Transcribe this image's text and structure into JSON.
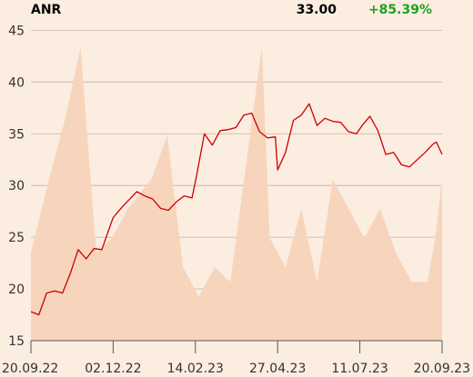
{
  "header": {
    "ticker": "ANR",
    "price": "33.00",
    "change": "+85.39%"
  },
  "colors": {
    "background": "#fcede1",
    "line": "#cc0000",
    "volume": "#f6d5bc",
    "grid": "#c2b3a5",
    "change_positive": "#1aa31a"
  },
  "chart_data": {
    "type": "line",
    "title": "",
    "xlabel": "",
    "ylabel": "",
    "ylim": [
      15,
      46
    ],
    "yticks": [
      15,
      20,
      25,
      30,
      35,
      40,
      45
    ],
    "xtick_labels": [
      "20.09.22",
      "02.12.22",
      "14.02.23",
      "27.04.23",
      "11.07.23",
      "20.09.23"
    ],
    "grid": "horizontal",
    "series": [
      {
        "kind": "price",
        "x": [
          "2022-09-20",
          "2022-09-27",
          "2022-10-04",
          "2022-10-11",
          "2022-10-18",
          "2022-10-25",
          "2022-11-01",
          "2022-11-08",
          "2022-11-15",
          "2022-11-22",
          "2022-11-29",
          "2022-12-02",
          "2022-12-09",
          "2022-12-16",
          "2022-12-23",
          "2022-12-30",
          "2023-01-06",
          "2023-01-13",
          "2023-01-20",
          "2023-01-27",
          "2023-02-03",
          "2023-02-10",
          "2023-02-14",
          "2023-02-21",
          "2023-02-28",
          "2023-03-07",
          "2023-03-14",
          "2023-03-21",
          "2023-03-28",
          "2023-04-04",
          "2023-04-11",
          "2023-04-18",
          "2023-04-25",
          "2023-04-27",
          "2023-05-04",
          "2023-05-11",
          "2023-05-18",
          "2023-05-25",
          "2023-06-01",
          "2023-06-08",
          "2023-06-15",
          "2023-06-22",
          "2023-06-29",
          "2023-07-06",
          "2023-07-11",
          "2023-07-18",
          "2023-07-25",
          "2023-08-01",
          "2023-08-08",
          "2023-08-15",
          "2023-08-22",
          "2023-08-29",
          "2023-09-05",
          "2023-09-12",
          "2023-09-15",
          "2023-09-20"
        ],
        "y": [
          17.8,
          17.5,
          19.6,
          19.8,
          19.6,
          21.5,
          23.8,
          22.9,
          23.9,
          23.8,
          26.0,
          26.9,
          27.8,
          28.6,
          29.4,
          29.0,
          28.7,
          27.8,
          27.6,
          28.4,
          29.0,
          28.8,
          30.9,
          35.0,
          33.9,
          35.3,
          35.4,
          35.6,
          36.8,
          37.0,
          35.2,
          34.6,
          34.7,
          31.5,
          33.2,
          36.3,
          36.8,
          37.9,
          35.8,
          36.5,
          36.2,
          36.1,
          35.2,
          35.0,
          35.8,
          36.7,
          35.3,
          33.0,
          33.2,
          32.0,
          31.8,
          32.5,
          33.2,
          34.0,
          34.2,
          33.0
        ]
      },
      {
        "kind": "volume",
        "x": [
          "2022-09-20",
          "2022-10-06",
          "2022-10-20",
          "2022-11-03",
          "2022-11-17",
          "2022-12-01",
          "2022-12-15",
          "2023-01-05",
          "2023-01-19",
          "2023-02-02",
          "2023-02-16",
          "2023-03-02",
          "2023-03-16",
          "2023-04-13",
          "2023-04-20",
          "2023-05-04",
          "2023-05-18",
          "2023-06-01",
          "2023-06-15",
          "2023-07-13",
          "2023-07-27",
          "2023-08-10",
          "2023-08-24",
          "2023-09-07",
          "2023-09-14",
          "2023-09-20"
        ],
        "values": [
          0.3,
          0.55,
          0.75,
          1.0,
          0.3,
          0.35,
          0.45,
          0.55,
          0.7,
          0.25,
          0.15,
          0.25,
          0.2,
          1.0,
          0.35,
          0.25,
          0.45,
          0.2,
          0.55,
          0.35,
          0.45,
          0.3,
          0.2,
          0.2,
          0.35,
          0.55
        ]
      }
    ]
  }
}
